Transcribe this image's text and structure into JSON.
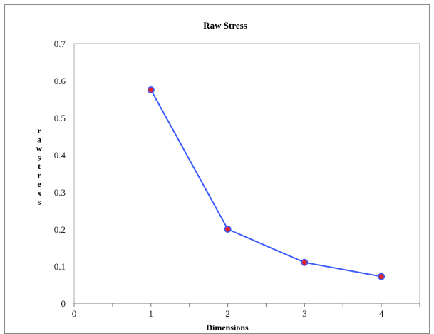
{
  "chart_data": {
    "type": "line",
    "title": "Raw Stress",
    "xlabel": "Dimensions",
    "ylabel": "raw stress",
    "xlim": [
      0,
      4.5
    ],
    "ylim": [
      0,
      0.7
    ],
    "x_ticks": [
      "0",
      "1",
      "2",
      "3",
      "4"
    ],
    "y_ticks": [
      "0",
      "0.1",
      "0.2",
      "0.3",
      "0.4",
      "0.5",
      "0.6",
      "0.7"
    ],
    "series": [
      {
        "x": [
          1,
          2,
          3,
          4
        ],
        "y": [
          0.575,
          0.2,
          0.11,
          0.072
        ]
      }
    ],
    "grid": false,
    "legend": "none",
    "colors": {
      "line": "#3d5cff",
      "marker_fill": "#e0242a",
      "marker_edge": "#3d5cff",
      "plot_border": "#a9a9a9",
      "axis": "#7a7a7a"
    }
  }
}
